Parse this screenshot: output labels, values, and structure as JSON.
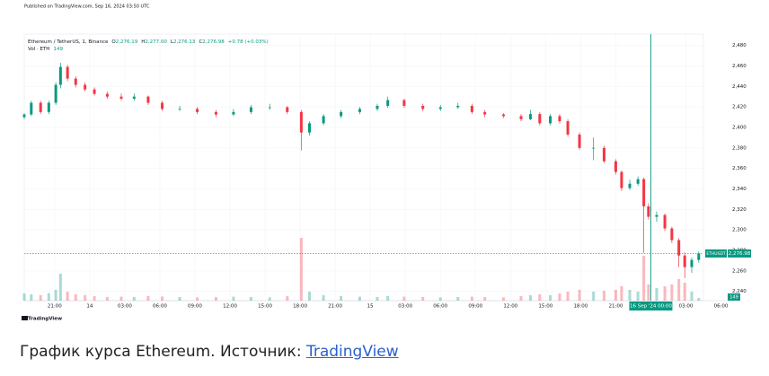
{
  "header": {
    "published": "Published on TradingView.com, Sep 16, 2024 03:50 UTC",
    "symbol": "Ethereum / TetherUS, 1, Binance",
    "ohlc": [
      {
        "key": "O",
        "value": "2,276.19"
      },
      {
        "key": "H",
        "value": "2,277.00"
      },
      {
        "key": "L",
        "value": "2,276.13"
      },
      {
        "key": "C",
        "value": "2,276.98"
      }
    ],
    "change": "+0.78 (+0.03%)",
    "volume_name": "Vol · ETH",
    "volume": "149",
    "logo": "TradingView"
  },
  "chart_data": {
    "type": "candlestick",
    "up_color": "#089981",
    "down_color": "#f23645",
    "grid": true,
    "x": [
      -5.6,
      -5.0,
      -4.2,
      -3.5,
      -2.9,
      -2.5,
      -1.9,
      -1.2,
      -0.4,
      0.4,
      1.5,
      2.7,
      3.8,
      5.0,
      6.2,
      7.7,
      9.2,
      10.8,
      12.3,
      13.8,
      15.4,
      16.9,
      18.1,
      18.8,
      20.0,
      21.5,
      23.1,
      24.6,
      25.5,
      26.9,
      28.5,
      30.0,
      31.5,
      32.7,
      33.8,
      35.4,
      36.9,
      37.7,
      38.5,
      39.4,
      40.2,
      40.9,
      41.9,
      43.1,
      44.0,
      45.0,
      45.5,
      46.2,
      46.9,
      47.4,
      47.8,
      48.5,
      49.2,
      49.8,
      50.4,
      50.9,
      51.5,
      52.1
    ],
    "open": [
      2410,
      2412.6,
      2424,
      2415,
      2424,
      2441.5,
      2459,
      2447.6,
      2441.5,
      2437,
      2432.7,
      2430,
      2428,
      2430,
      2424,
      2418,
      2418,
      2415,
      2412.6,
      2415,
      2419.6,
      2419.6,
      2415,
      2395,
      2404,
      2411,
      2415,
      2418,
      2421,
      2426.6,
      2421,
      2418,
      2419.6,
      2421,
      2415,
      2412.6,
      2411,
      2408,
      2413,
      2404,
      2411,
      2406,
      2393,
      2380,
      2380,
      2367,
      2356.5,
      2340.8,
      2345,
      2349.5,
      2323,
      2312.8,
      2314.5,
      2301.4,
      2290,
      2275,
      2263.7,
      2270.7
    ],
    "high": [
      2414,
      2426,
      2426,
      2426,
      2444,
      2463,
      2461,
      2450,
      2444,
      2439,
      2435,
      2433,
      2433,
      2431,
      2426,
      2421,
      2420,
      2417,
      2418,
      2422,
      2423,
      2421,
      2417,
      2406,
      2413,
      2417,
      2420,
      2423,
      2430,
      2428,
      2423,
      2422,
      2424,
      2423,
      2417,
      2414,
      2413,
      2417,
      2415,
      2413,
      2413,
      2408,
      2395,
      2390,
      2382,
      2369,
      2358,
      2349,
      2352,
      2351,
      2326,
      2318,
      2316,
      2303,
      2292,
      2278,
      2273,
      2279
    ],
    "low": [
      2408,
      2411,
      2413,
      2413,
      2422,
      2438,
      2445,
      2439,
      2435,
      2431,
      2428,
      2426,
      2426,
      2422,
      2416,
      2416,
      2413,
      2410,
      2411,
      2413,
      2417,
      2413,
      2377.5,
      2392,
      2402,
      2409,
      2413,
      2416,
      2419,
      2419,
      2416,
      2416,
      2418,
      2413,
      2410,
      2409,
      2406,
      2407,
      2402,
      2402,
      2404,
      2391,
      2378,
      2368,
      2365,
      2354,
      2338,
      2339,
      2343,
      2277.7,
      2310,
      2308,
      2299,
      2287,
      2263.7,
      2253,
      2258,
      2268
    ],
    "close": [
      2412.6,
      2424,
      2415,
      2424,
      2441.5,
      2459,
      2447.6,
      2441.5,
      2437,
      2432.7,
      2430,
      2428,
      2430,
      2424,
      2418,
      2418,
      2415,
      2412.6,
      2415,
      2419.6,
      2419.6,
      2415,
      2395,
      2404,
      2411,
      2415,
      2418,
      2421,
      2426.6,
      2421,
      2418,
      2419.6,
      2421,
      2415,
      2412.6,
      2411,
      2408,
      2413,
      2404,
      2411,
      2406,
      2393,
      2380,
      2380,
      2367,
      2356.5,
      2340.8,
      2345,
      2349.5,
      2323,
      2312.8,
      2314.5,
      2301.4,
      2290,
      2275,
      2263.7,
      2270.7,
      2276.98
    ],
    "volume": [
      400,
      350,
      300,
      420,
      600,
      1500,
      500,
      350,
      300,
      250,
      200,
      220,
      200,
      250,
      230,
      200,
      180,
      200,
      220,
      200,
      180,
      250,
      3500,
      500,
      300,
      250,
      220,
      200,
      250,
      220,
      200,
      180,
      200,
      220,
      200,
      180,
      250,
      300,
      350,
      300,
      400,
      500,
      600,
      500,
      550,
      600,
      800,
      600,
      500,
      2500,
      900,
      700,
      800,
      900,
      1200,
      1000,
      500,
      149
    ],
    "volume_lim": [
      0,
      5000
    ],
    "xlim": [
      -5.6,
      52.5
    ],
    "ylim": [
      2231,
      2491
    ],
    "xticks": [
      {
        "value": -3,
        "label": "21:00"
      },
      {
        "value": 0,
        "label": "14"
      },
      {
        "value": 3,
        "label": "03:00"
      },
      {
        "value": 6,
        "label": "06:00"
      },
      {
        "value": 9,
        "label": "09:00"
      },
      {
        "value": 12,
        "label": "12:00"
      },
      {
        "value": 15,
        "label": "15:00"
      },
      {
        "value": 18,
        "label": "18:00"
      },
      {
        "value": 21,
        "label": "21:00"
      },
      {
        "value": 24,
        "label": "15"
      },
      {
        "value": 27,
        "label": "03:00"
      },
      {
        "value": 30,
        "label": "06:00"
      },
      {
        "value": 33,
        "label": "09:00"
      },
      {
        "value": 36,
        "label": "12:00"
      },
      {
        "value": 39,
        "label": "15:00"
      },
      {
        "value": 42,
        "label": "18:00"
      },
      {
        "value": 45,
        "label": "21:00"
      },
      {
        "value": 51,
        "label": "03:00"
      },
      {
        "value": 54,
        "label": "06:00"
      }
    ],
    "yticks": [
      {
        "value": 2480,
        "label": "2,480"
      },
      {
        "value": 2460,
        "label": "2,460"
      },
      {
        "value": 2440,
        "label": "2,440"
      },
      {
        "value": 2420,
        "label": "2,420"
      },
      {
        "value": 2400,
        "label": "2,400"
      },
      {
        "value": 2380,
        "label": "2,380"
      },
      {
        "value": 2360,
        "label": "2,360"
      },
      {
        "value": 2340,
        "label": "2,340"
      },
      {
        "value": 2320,
        "label": "2,320"
      },
      {
        "value": 2300,
        "label": "2,300"
      },
      {
        "value": 2280,
        "label": "2,280"
      },
      {
        "value": 2260,
        "label": "2,260"
      },
      {
        "value": 2240,
        "label": "2,240"
      }
    ],
    "crosshair": {
      "value": 48,
      "label": "16 Sep '24 00:00"
    },
    "last_price": {
      "symbol": "ETHUSDT",
      "value": 2276.98,
      "label": "2,276.98"
    }
  },
  "caption": {
    "text": "График курса Ethereum. Источник: ",
    "link": "TradingView"
  }
}
